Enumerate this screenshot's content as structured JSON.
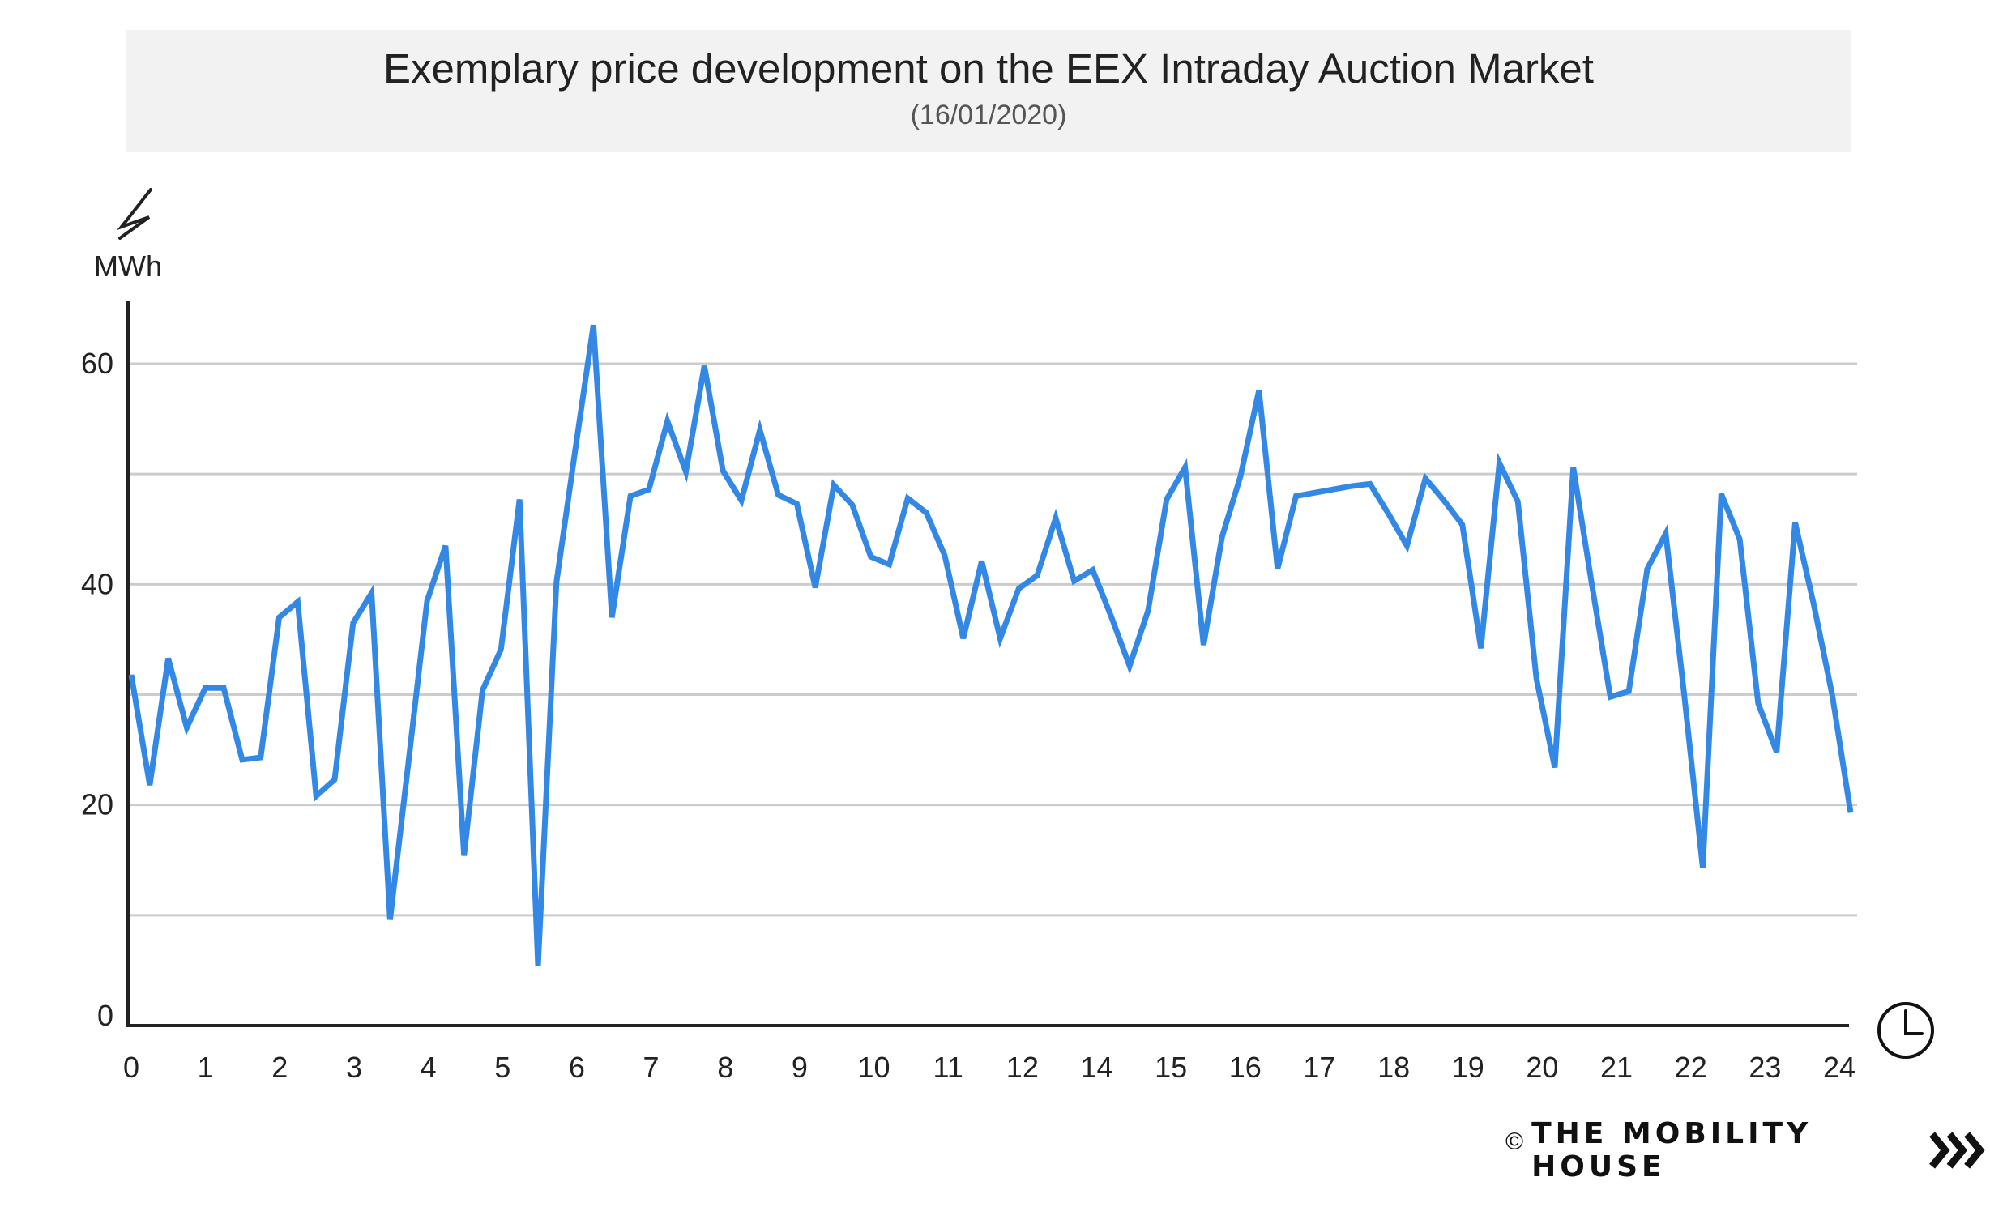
{
  "header": {
    "title": "Exemplary price development on the EEX Intraday Auction Market",
    "subtitle": "(16/01/2020)"
  },
  "footer": {
    "copyright": "©",
    "brand": "THE MOBILITY HOUSE"
  },
  "icons": {
    "y_axis_icon": "lightning-icon",
    "x_axis_icon": "clock-icon",
    "brand_icon": "chevrons-right-icon"
  },
  "colors": {
    "line": "#3388e6",
    "grid": "#cccccc",
    "axis": "#222222",
    "title_background": "#f2f2f2"
  },
  "chart_data": {
    "type": "line",
    "title": "Exemplary price development on the EEX Intraday Auction Market",
    "subtitle": "(16/01/2020)",
    "ylabel": "MWh",
    "xlabel": "",
    "ylim": [
      0,
      65
    ],
    "y_ticks": [
      0,
      20,
      40,
      60
    ],
    "gridlines_y": [
      10,
      20,
      30,
      40,
      50,
      60
    ],
    "grid": true,
    "x_ticks": [
      "0",
      "1",
      "2",
      "3",
      "4",
      "5",
      "6",
      "7",
      "8",
      "9",
      "10",
      "11",
      "12",
      "14",
      "15",
      "16",
      "17",
      "18",
      "19",
      "20",
      "21",
      "22",
      "23",
      "24"
    ],
    "series": [
      {
        "color": "#3388e6",
        "values": [
          [
            0.0,
            31.8
          ],
          [
            0.25,
            21.8
          ],
          [
            0.5,
            33.3
          ],
          [
            0.75,
            27.0
          ],
          [
            1.0,
            30.6
          ],
          [
            1.25,
            30.6
          ],
          [
            1.5,
            24.1
          ],
          [
            1.75,
            24.3
          ],
          [
            2.0,
            37.0
          ],
          [
            2.25,
            38.4
          ],
          [
            2.5,
            20.8
          ],
          [
            2.75,
            22.3
          ],
          [
            3.0,
            36.5
          ],
          [
            3.25,
            39.2
          ],
          [
            3.5,
            9.6
          ],
          [
            3.75,
            24.0
          ],
          [
            4.0,
            38.5
          ],
          [
            4.25,
            43.5
          ],
          [
            4.5,
            15.4
          ],
          [
            4.75,
            30.4
          ],
          [
            5.0,
            34.1
          ],
          [
            5.25,
            47.7
          ],
          [
            5.5,
            5.4
          ],
          [
            5.75,
            40.2
          ],
          [
            6.0,
            52.0
          ],
          [
            6.25,
            63.5
          ],
          [
            6.5,
            37.0
          ],
          [
            6.75,
            48.0
          ],
          [
            7.0,
            48.6
          ],
          [
            7.25,
            54.8
          ],
          [
            7.5,
            50.2
          ],
          [
            7.75,
            59.8
          ],
          [
            8.0,
            50.3
          ],
          [
            8.25,
            47.6
          ],
          [
            8.5,
            54.0
          ],
          [
            8.75,
            48.1
          ],
          [
            9.0,
            47.3
          ],
          [
            9.25,
            39.7
          ],
          [
            9.5,
            49.0
          ],
          [
            9.75,
            47.2
          ],
          [
            10.0,
            42.5
          ],
          [
            10.25,
            41.8
          ],
          [
            10.5,
            47.8
          ],
          [
            10.75,
            46.5
          ],
          [
            11.0,
            42.6
          ],
          [
            11.25,
            35.1
          ],
          [
            11.5,
            42.1
          ],
          [
            11.75,
            35.1
          ],
          [
            12.0,
            39.6
          ],
          [
            12.25,
            40.8
          ],
          [
            12.5,
            46.0
          ],
          [
            12.75,
            40.3
          ],
          [
            13.0,
            41.3
          ],
          [
            13.25,
            37.1
          ],
          [
            13.5,
            32.6
          ],
          [
            13.75,
            37.6
          ],
          [
            14.0,
            47.7
          ],
          [
            14.25,
            50.6
          ],
          [
            14.5,
            34.5
          ],
          [
            14.75,
            44.3
          ],
          [
            15.0,
            49.8
          ],
          [
            15.25,
            57.6
          ],
          [
            15.5,
            41.4
          ],
          [
            15.75,
            48.0
          ],
          [
            16.0,
            48.3
          ],
          [
            16.25,
            48.6
          ],
          [
            16.5,
            48.9
          ],
          [
            16.75,
            49.1
          ],
          [
            17.0,
            46.4
          ],
          [
            17.25,
            43.5
          ],
          [
            17.5,
            49.6
          ],
          [
            17.75,
            47.6
          ],
          [
            18.0,
            45.4
          ],
          [
            18.25,
            34.2
          ],
          [
            18.5,
            51.0
          ],
          [
            18.75,
            47.5
          ],
          [
            19.0,
            31.5
          ],
          [
            19.25,
            23.4
          ],
          [
            19.5,
            50.6
          ],
          [
            19.75,
            40.0
          ],
          [
            20.0,
            29.8
          ],
          [
            20.25,
            30.3
          ],
          [
            20.5,
            41.4
          ],
          [
            20.75,
            44.6
          ],
          [
            21.0,
            30.0
          ],
          [
            21.25,
            14.3
          ],
          [
            21.5,
            48.2
          ],
          [
            21.75,
            44.1
          ],
          [
            22.0,
            29.2
          ],
          [
            22.25,
            24.8
          ],
          [
            22.5,
            45.6
          ],
          [
            22.75,
            38.2
          ],
          [
            23.0,
            30.0
          ],
          [
            23.25,
            19.3
          ]
        ]
      }
    ]
  }
}
